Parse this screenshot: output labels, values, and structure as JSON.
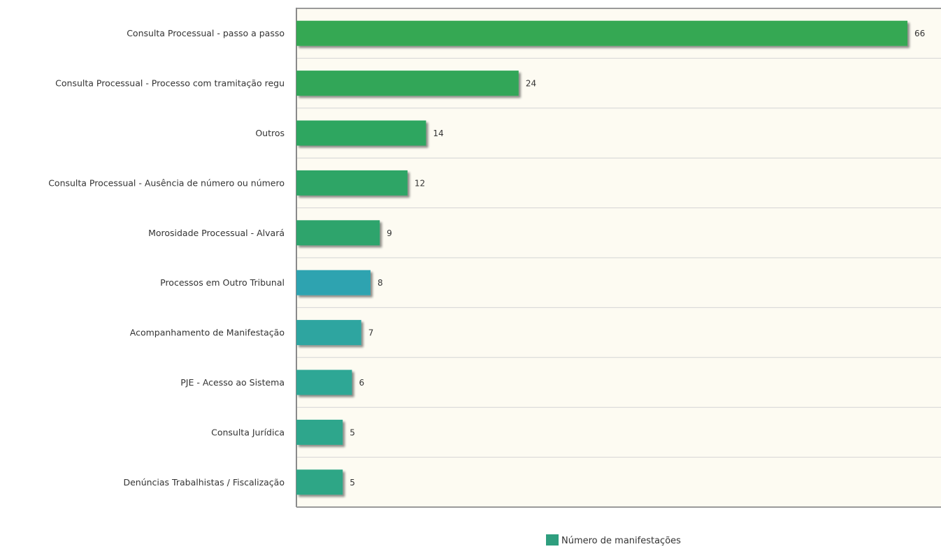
{
  "chart_data": {
    "type": "bar",
    "orientation": "horizontal",
    "categories": [
      "Consulta Processual - passo a passo",
      "Consulta Processual - Processo com tramitação regu",
      "Outros",
      "Consulta Processual - Ausência de número ou número",
      "Morosidade Processual - Alvará",
      "Processos em Outro Tribunal",
      "Acompanhamento de Manifestação",
      "PJE - Acesso ao Sistema",
      "Consulta Jurídica",
      "Denúncias Trabalhistas / Fiscalização"
    ],
    "series": [
      {
        "name": "Número de manifestações",
        "values": [
          66,
          24,
          14,
          12,
          9,
          8,
          7,
          6,
          5,
          5
        ]
      }
    ],
    "bar_colors": [
      "#34a853",
      "#31a658",
      "#2fa660",
      "#2fa566",
      "#2ea46c",
      "#2ea3b0",
      "#2ea5a0",
      "#2fa795",
      "#2ea68c",
      "#2fa686"
    ],
    "legend_color": "#2e9e7e",
    "xlim": [
      0,
      67
    ],
    "grid": true,
    "legend": "bottom-center",
    "plot_background": "#fdfbf2"
  }
}
